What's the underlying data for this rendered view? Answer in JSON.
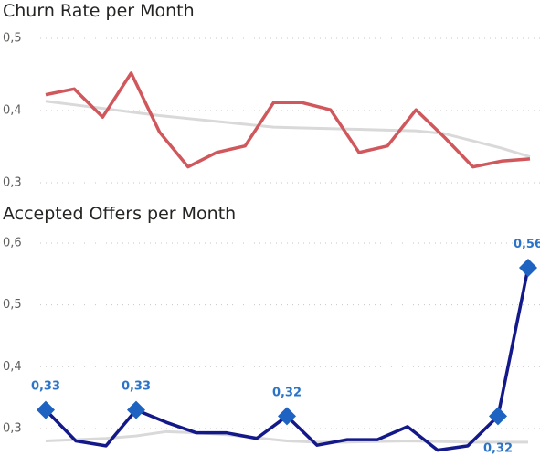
{
  "chart_data": [
    {
      "type": "line",
      "title": "Churn Rate per Month",
      "ylim": [
        0.3,
        0.5
      ],
      "yticks": [
        {
          "value": 0.3,
          "label": "0,3"
        },
        {
          "value": 0.4,
          "label": "0,4"
        },
        {
          "value": 0.5,
          "label": "0,5"
        }
      ],
      "grid": true,
      "series": [
        {
          "color": "#d9d9d9",
          "values": [
            0.413,
            0.408,
            0.403,
            0.398,
            0.393,
            0.389,
            0.385,
            0.381,
            0.377,
            0.376,
            0.375,
            0.374,
            0.373,
            0.372,
            0.368,
            0.358,
            0.348,
            0.336
          ]
        },
        {
          "color": "#d0575c",
          "values": [
            0.422,
            0.43,
            0.391,
            0.452,
            0.37,
            0.322,
            0.342,
            0.351,
            0.411,
            0.411,
            0.401,
            0.342,
            0.351,
            0.401,
            0.363,
            0.322,
            0.33,
            0.333
          ]
        }
      ]
    },
    {
      "type": "line",
      "title": "Accepted Offers per Month",
      "ylim": [
        0.26,
        0.6
      ],
      "yticks": [
        {
          "value": 0.3,
          "label": "0,3"
        },
        {
          "value": 0.4,
          "label": "0,4"
        },
        {
          "value": 0.5,
          "label": "0,5"
        },
        {
          "value": 0.6,
          "label": "0,6"
        }
      ],
      "grid": true,
      "series": [
        {
          "color": "#d9d9d9",
          "values": [
            0.28,
            0.282,
            0.284,
            0.288,
            0.295,
            0.293,
            0.29,
            0.285,
            0.28,
            0.278,
            0.278,
            0.279,
            0.28,
            0.279,
            0.278,
            0.278,
            0.278
          ]
        },
        {
          "color": "#14198a",
          "marker_color": "#1e63c1",
          "values": [
            0.33,
            0.28,
            0.272,
            0.33,
            0.31,
            0.293,
            0.293,
            0.284,
            0.32,
            0.273,
            0.282,
            0.282,
            0.303,
            0.265,
            0.272,
            0.32,
            0.56
          ],
          "value_labels": [
            "0,33",
            null,
            null,
            "0,33",
            null,
            null,
            null,
            null,
            "0,32",
            null,
            null,
            null,
            null,
            null,
            null,
            "0,32",
            "0,56"
          ]
        }
      ]
    }
  ]
}
